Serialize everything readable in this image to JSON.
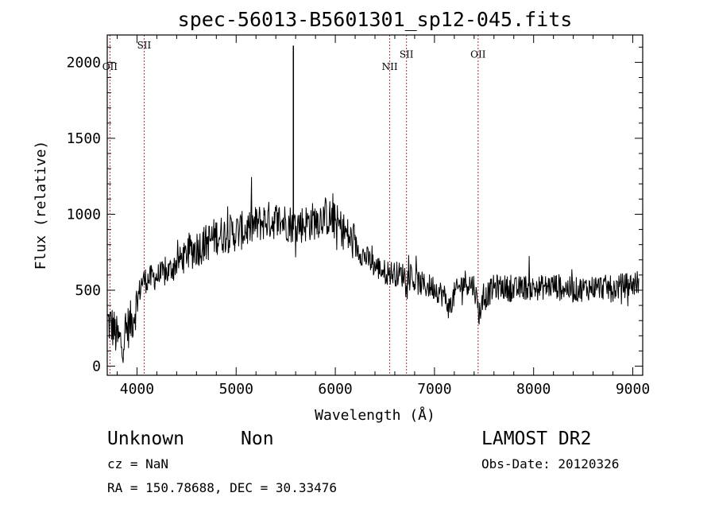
{
  "chart_data": {
    "type": "line",
    "title": "spec-56013-B5601301_sp12-045.fits",
    "xlabel": "Wavelength (Å)",
    "ylabel": "Flux (relative)",
    "xlim": [
      3700,
      9100
    ],
    "ylim": [
      -60,
      2180
    ],
    "x_ticks": [
      4000,
      5000,
      6000,
      7000,
      8000,
      9000
    ],
    "y_ticks": [
      0,
      500,
      1000,
      1500,
      2000
    ],
    "x_minor_step": 200,
    "y_minor_step": 100,
    "grid": false,
    "line_color": "#000000",
    "marker_color": "#b03030",
    "anchors": [
      [
        3700,
        300
      ],
      [
        3760,
        250
      ],
      [
        3800,
        180
      ],
      [
        3850,
        150
      ],
      [
        3900,
        250
      ],
      [
        3950,
        300
      ],
      [
        4000,
        420
      ],
      [
        4050,
        560
      ],
      [
        4100,
        570
      ],
      [
        4200,
        590
      ],
      [
        4300,
        610
      ],
      [
        4400,
        680
      ],
      [
        4500,
        740
      ],
      [
        4600,
        780
      ],
      [
        4700,
        810
      ],
      [
        4800,
        860
      ],
      [
        4900,
        870
      ],
      [
        5000,
        880
      ],
      [
        5100,
        900
      ],
      [
        5200,
        930
      ],
      [
        5300,
        960
      ],
      [
        5400,
        960
      ],
      [
        5500,
        950
      ],
      [
        5600,
        930
      ],
      [
        5700,
        940
      ],
      [
        5800,
        960
      ],
      [
        5900,
        990
      ],
      [
        6000,
        950
      ],
      [
        6100,
        880
      ],
      [
        6200,
        790
      ],
      [
        6300,
        720
      ],
      [
        6400,
        660
      ],
      [
        6500,
        620
      ],
      [
        6600,
        610
      ],
      [
        6700,
        600
      ],
      [
        6800,
        560
      ],
      [
        6900,
        530
      ],
      [
        7000,
        520
      ],
      [
        7100,
        460
      ],
      [
        7150,
        380
      ],
      [
        7200,
        470
      ],
      [
        7300,
        560
      ],
      [
        7400,
        530
      ],
      [
        7450,
        350
      ],
      [
        7500,
        440
      ],
      [
        7600,
        520
      ],
      [
        7700,
        520
      ],
      [
        7800,
        500
      ],
      [
        7900,
        520
      ],
      [
        8000,
        510
      ],
      [
        8100,
        520
      ],
      [
        8200,
        530
      ],
      [
        8300,
        520
      ],
      [
        8400,
        500
      ],
      [
        8500,
        510
      ],
      [
        8600,
        520
      ],
      [
        8700,
        520
      ],
      [
        8800,
        510
      ],
      [
        8900,
        530
      ],
      [
        9000,
        540
      ],
      [
        9100,
        560
      ]
    ],
    "spike": {
      "x": 5577,
      "y": 2110
    },
    "line_markers": [
      {
        "label": "OII",
        "x": 3727,
        "label_y": 1950
      },
      {
        "label": "SII",
        "x": 4072,
        "label_y": 2090
      },
      {
        "label": "NII",
        "x": 6549,
        "label_y": 1950
      },
      {
        "label": "SII",
        "x": 6718,
        "label_y": 2030
      },
      {
        "label": "OII",
        "x": 7440,
        "label_y": 2030
      }
    ]
  },
  "info": {
    "class": "Unknown",
    "subclass": "Non",
    "survey": "LAMOST DR2",
    "cz": "cz = NaN",
    "obs_date": "Obs-Date: 20120326",
    "coords": "RA = 150.78688, DEC =  30.33476"
  }
}
